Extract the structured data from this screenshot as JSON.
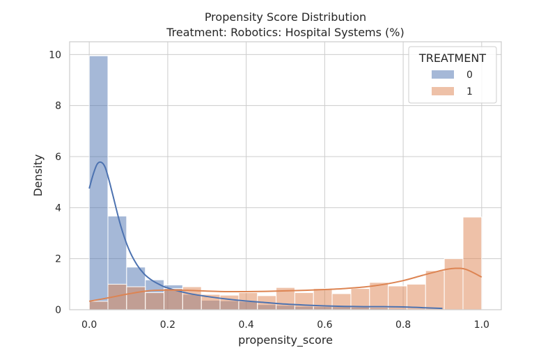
{
  "chart_data": {
    "type": "bar",
    "title": "Propensity Score Distribution",
    "subtitle": "Treatment: Robotics: Hospital Systems (%)",
    "xlabel": "propensity_score",
    "ylabel": "Density",
    "xlim": [
      -0.05,
      1.05
    ],
    "ylim": [
      0,
      10.5
    ],
    "xticks": [
      0.0,
      0.2,
      0.4,
      0.6,
      0.8,
      1.0
    ],
    "xtick_labels": [
      "0.0",
      "0.2",
      "0.4",
      "0.6",
      "0.8",
      "1.0"
    ],
    "yticks": [
      0,
      2,
      4,
      6,
      8,
      10
    ],
    "ytick_labels": [
      "0",
      "2",
      "4",
      "6",
      "8",
      "10"
    ],
    "grid": true,
    "legend": {
      "title": "TREATMENT",
      "placement": "top-right"
    },
    "bin_edges": [
      0.0,
      0.0476,
      0.0952,
      0.1429,
      0.1905,
      0.2381,
      0.2857,
      0.3333,
      0.381,
      0.4286,
      0.4762,
      0.5238,
      0.5714,
      0.619,
      0.6667,
      0.7143,
      0.7619,
      0.8095,
      0.8571,
      0.9048,
      0.9524,
      1.0
    ],
    "series": [
      {
        "name": "0",
        "color": "#4c72b0",
        "fill": "rgba(76,114,176,0.5)",
        "values": [
          9.95,
          3.67,
          1.67,
          1.17,
          0.97,
          0.6,
          0.37,
          0.35,
          0.32,
          0.2,
          0.17,
          0.13,
          0.12,
          0.12,
          0.1,
          0.07,
          0.05,
          0.03,
          0.02,
          0.01,
          0.01
        ],
        "kde_x": [
          0.0,
          0.01,
          0.02,
          0.03,
          0.04,
          0.05,
          0.06,
          0.08,
          0.1,
          0.12,
          0.14,
          0.16,
          0.18,
          0.2,
          0.25,
          0.3,
          0.35,
          0.4,
          0.45,
          0.5,
          0.55,
          0.6,
          0.65,
          0.7,
          0.75,
          0.8,
          0.85,
          0.9
        ],
        "kde_y": [
          4.75,
          5.3,
          5.7,
          5.78,
          5.6,
          5.1,
          4.5,
          3.3,
          2.4,
          1.8,
          1.4,
          1.15,
          0.98,
          0.85,
          0.65,
          0.52,
          0.42,
          0.34,
          0.28,
          0.22,
          0.18,
          0.15,
          0.13,
          0.12,
          0.12,
          0.11,
          0.08,
          0.05
        ]
      },
      {
        "name": "1",
        "color": "#dd8452",
        "fill": "rgba(221,132,82,0.5)",
        "values": [
          0.33,
          1.0,
          0.9,
          0.67,
          0.83,
          0.9,
          0.6,
          0.57,
          0.67,
          0.55,
          0.87,
          0.67,
          0.83,
          0.63,
          0.83,
          1.07,
          0.93,
          1.0,
          1.53,
          2.0,
          3.63
        ],
        "kde_x": [
          0.0,
          0.05,
          0.1,
          0.15,
          0.2,
          0.25,
          0.3,
          0.35,
          0.4,
          0.45,
          0.5,
          0.55,
          0.6,
          0.65,
          0.7,
          0.75,
          0.8,
          0.85,
          0.9,
          0.93,
          0.96,
          1.0
        ],
        "kde_y": [
          0.33,
          0.47,
          0.62,
          0.74,
          0.77,
          0.76,
          0.73,
          0.71,
          0.71,
          0.72,
          0.74,
          0.76,
          0.79,
          0.83,
          0.89,
          0.99,
          1.14,
          1.35,
          1.55,
          1.62,
          1.58,
          1.28
        ]
      }
    ]
  }
}
